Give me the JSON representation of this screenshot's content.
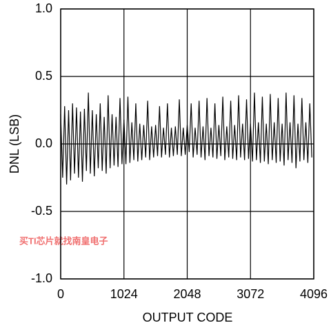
{
  "chart_data": {
    "type": "line",
    "x_label": "OUTPUT CODE",
    "y_label": "DNL (LSB)",
    "annotation": "买TI芯片就找南皇电子",
    "xlim": [
      0,
      4096
    ],
    "xticks": [
      0,
      1024,
      2048,
      3072,
      4096
    ],
    "ylim": [
      -1,
      1
    ],
    "yticks": [
      {
        "value": -1,
        "label": "-1.0"
      },
      -0.5,
      {
        "value": 0,
        "label": "0.0"
      },
      0.5,
      {
        "value": 1,
        "label": "1.0"
      }
    ],
    "grid": true,
    "x": [
      0,
      32,
      64,
      96,
      128,
      160,
      192,
      224,
      256,
      288,
      320,
      352,
      384,
      416,
      448,
      480,
      512,
      544,
      576,
      608,
      640,
      672,
      704,
      736,
      768,
      800,
      832,
      864,
      896,
      928,
      960,
      992,
      1024,
      1056,
      1088,
      1120,
      1152,
      1184,
      1216,
      1248,
      1280,
      1312,
      1344,
      1376,
      1408,
      1440,
      1472,
      1504,
      1536,
      1568,
      1600,
      1632,
      1664,
      1696,
      1728,
      1760,
      1792,
      1824,
      1856,
      1888,
      1920,
      1952,
      1984,
      2016,
      2048,
      2080,
      2112,
      2144,
      2176,
      2208,
      2240,
      2272,
      2304,
      2336,
      2368,
      2400,
      2432,
      2464,
      2496,
      2528,
      2560,
      2592,
      2624,
      2656,
      2688,
      2720,
      2752,
      2784,
      2816,
      2848,
      2880,
      2912,
      2944,
      2976,
      3008,
      3040,
      3072,
      3104,
      3136,
      3168,
      3200,
      3232,
      3264,
      3296,
      3328,
      3360,
      3392,
      3424,
      3456,
      3488,
      3520,
      3552,
      3584,
      3616,
      3648,
      3680,
      3712,
      3744,
      3776,
      3808,
      3840,
      3872,
      3904,
      3936,
      3968,
      4000,
      4032,
      4064
    ],
    "series": [
      {
        "name": "DNL",
        "color": "#000000",
        "values": [
          0.22,
          -0.25,
          0.28,
          -0.3,
          0.25,
          -0.27,
          0.3,
          -0.22,
          0.27,
          -0.25,
          0.24,
          -0.28,
          0.26,
          -0.2,
          0.38,
          -0.22,
          0.25,
          -0.24,
          0.22,
          -0.18,
          0.3,
          -0.2,
          0.2,
          -0.22,
          0.36,
          -0.18,
          0.22,
          -0.16,
          0.2,
          -0.17,
          0.34,
          -0.15,
          0.18,
          -0.15,
          0.35,
          -0.14,
          0.16,
          -0.12,
          0.3,
          -0.13,
          0.15,
          -0.12,
          0.14,
          -0.1,
          0.32,
          -0.12,
          0.13,
          -0.1,
          0.14,
          -0.09,
          0.28,
          -0.1,
          0.12,
          -0.08,
          0.3,
          -0.1,
          0.12,
          -0.09,
          0.13,
          -0.08,
          0.33,
          -0.09,
          0.12,
          -0.08,
          0.14,
          -0.06,
          0.3,
          -0.1,
          0.12,
          -0.08,
          0.32,
          -0.1,
          0.13,
          -0.12,
          0.34,
          -0.09,
          0.12,
          -0.1,
          0.3,
          -0.11,
          0.14,
          -0.09,
          0.35,
          -0.12,
          0.13,
          -0.1,
          0.32,
          -0.11,
          0.14,
          -0.12,
          0.36,
          -0.1,
          0.15,
          -0.12,
          0.33,
          -0.11,
          0.15,
          -0.13,
          0.38,
          -0.12,
          0.16,
          -0.14,
          0.35,
          -0.13,
          0.15,
          -0.15,
          0.37,
          -0.12,
          0.16,
          -0.14,
          0.34,
          -0.13,
          0.15,
          -0.16,
          0.38,
          -0.12,
          0.16,
          -0.14,
          0.36,
          -0.18,
          0.15,
          -0.13,
          0.34,
          -0.12,
          0.16,
          -0.14,
          0.3,
          -0.1
        ]
      }
    ]
  }
}
